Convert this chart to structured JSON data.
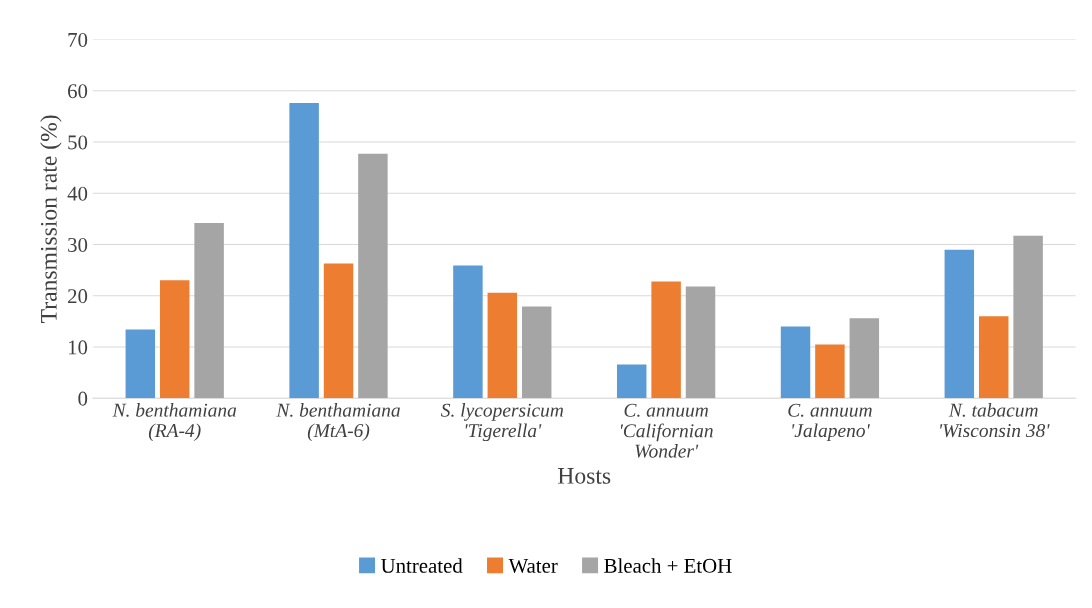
{
  "chart_data": {
    "type": "bar",
    "xlabel": "Hosts",
    "ylabel": "Transmission rate (%)",
    "categories": [
      "N. benthamiana\n(RA-4)",
      "N. benthamiana\n(MtA-6)",
      "S. lycopersicum\n'Tigerella'",
      "C. annuum\n'Californian\nWonder'",
      "C. annuum\n'Jalapeno'",
      "N. tabacum\n'Wisconsin 38'"
    ],
    "series": [
      {
        "name": "Untreated",
        "color": "#5b9bd5",
        "values": [
          13.4,
          57.6,
          25.9,
          6.6,
          14.0,
          29.0
        ]
      },
      {
        "name": "Water",
        "color": "#ed7d31",
        "values": [
          23.0,
          26.3,
          20.6,
          22.8,
          10.5,
          16.0
        ]
      },
      {
        "name": "Bleach + EtOH",
        "color": "#a5a5a5",
        "values": [
          34.2,
          47.7,
          17.9,
          21.8,
          15.6,
          31.7
        ]
      }
    ],
    "ylim": [
      0,
      70
    ],
    "yticks": [
      0,
      10,
      20,
      30,
      40,
      50,
      60,
      70
    ],
    "grid": "y",
    "legend": "bottom"
  }
}
